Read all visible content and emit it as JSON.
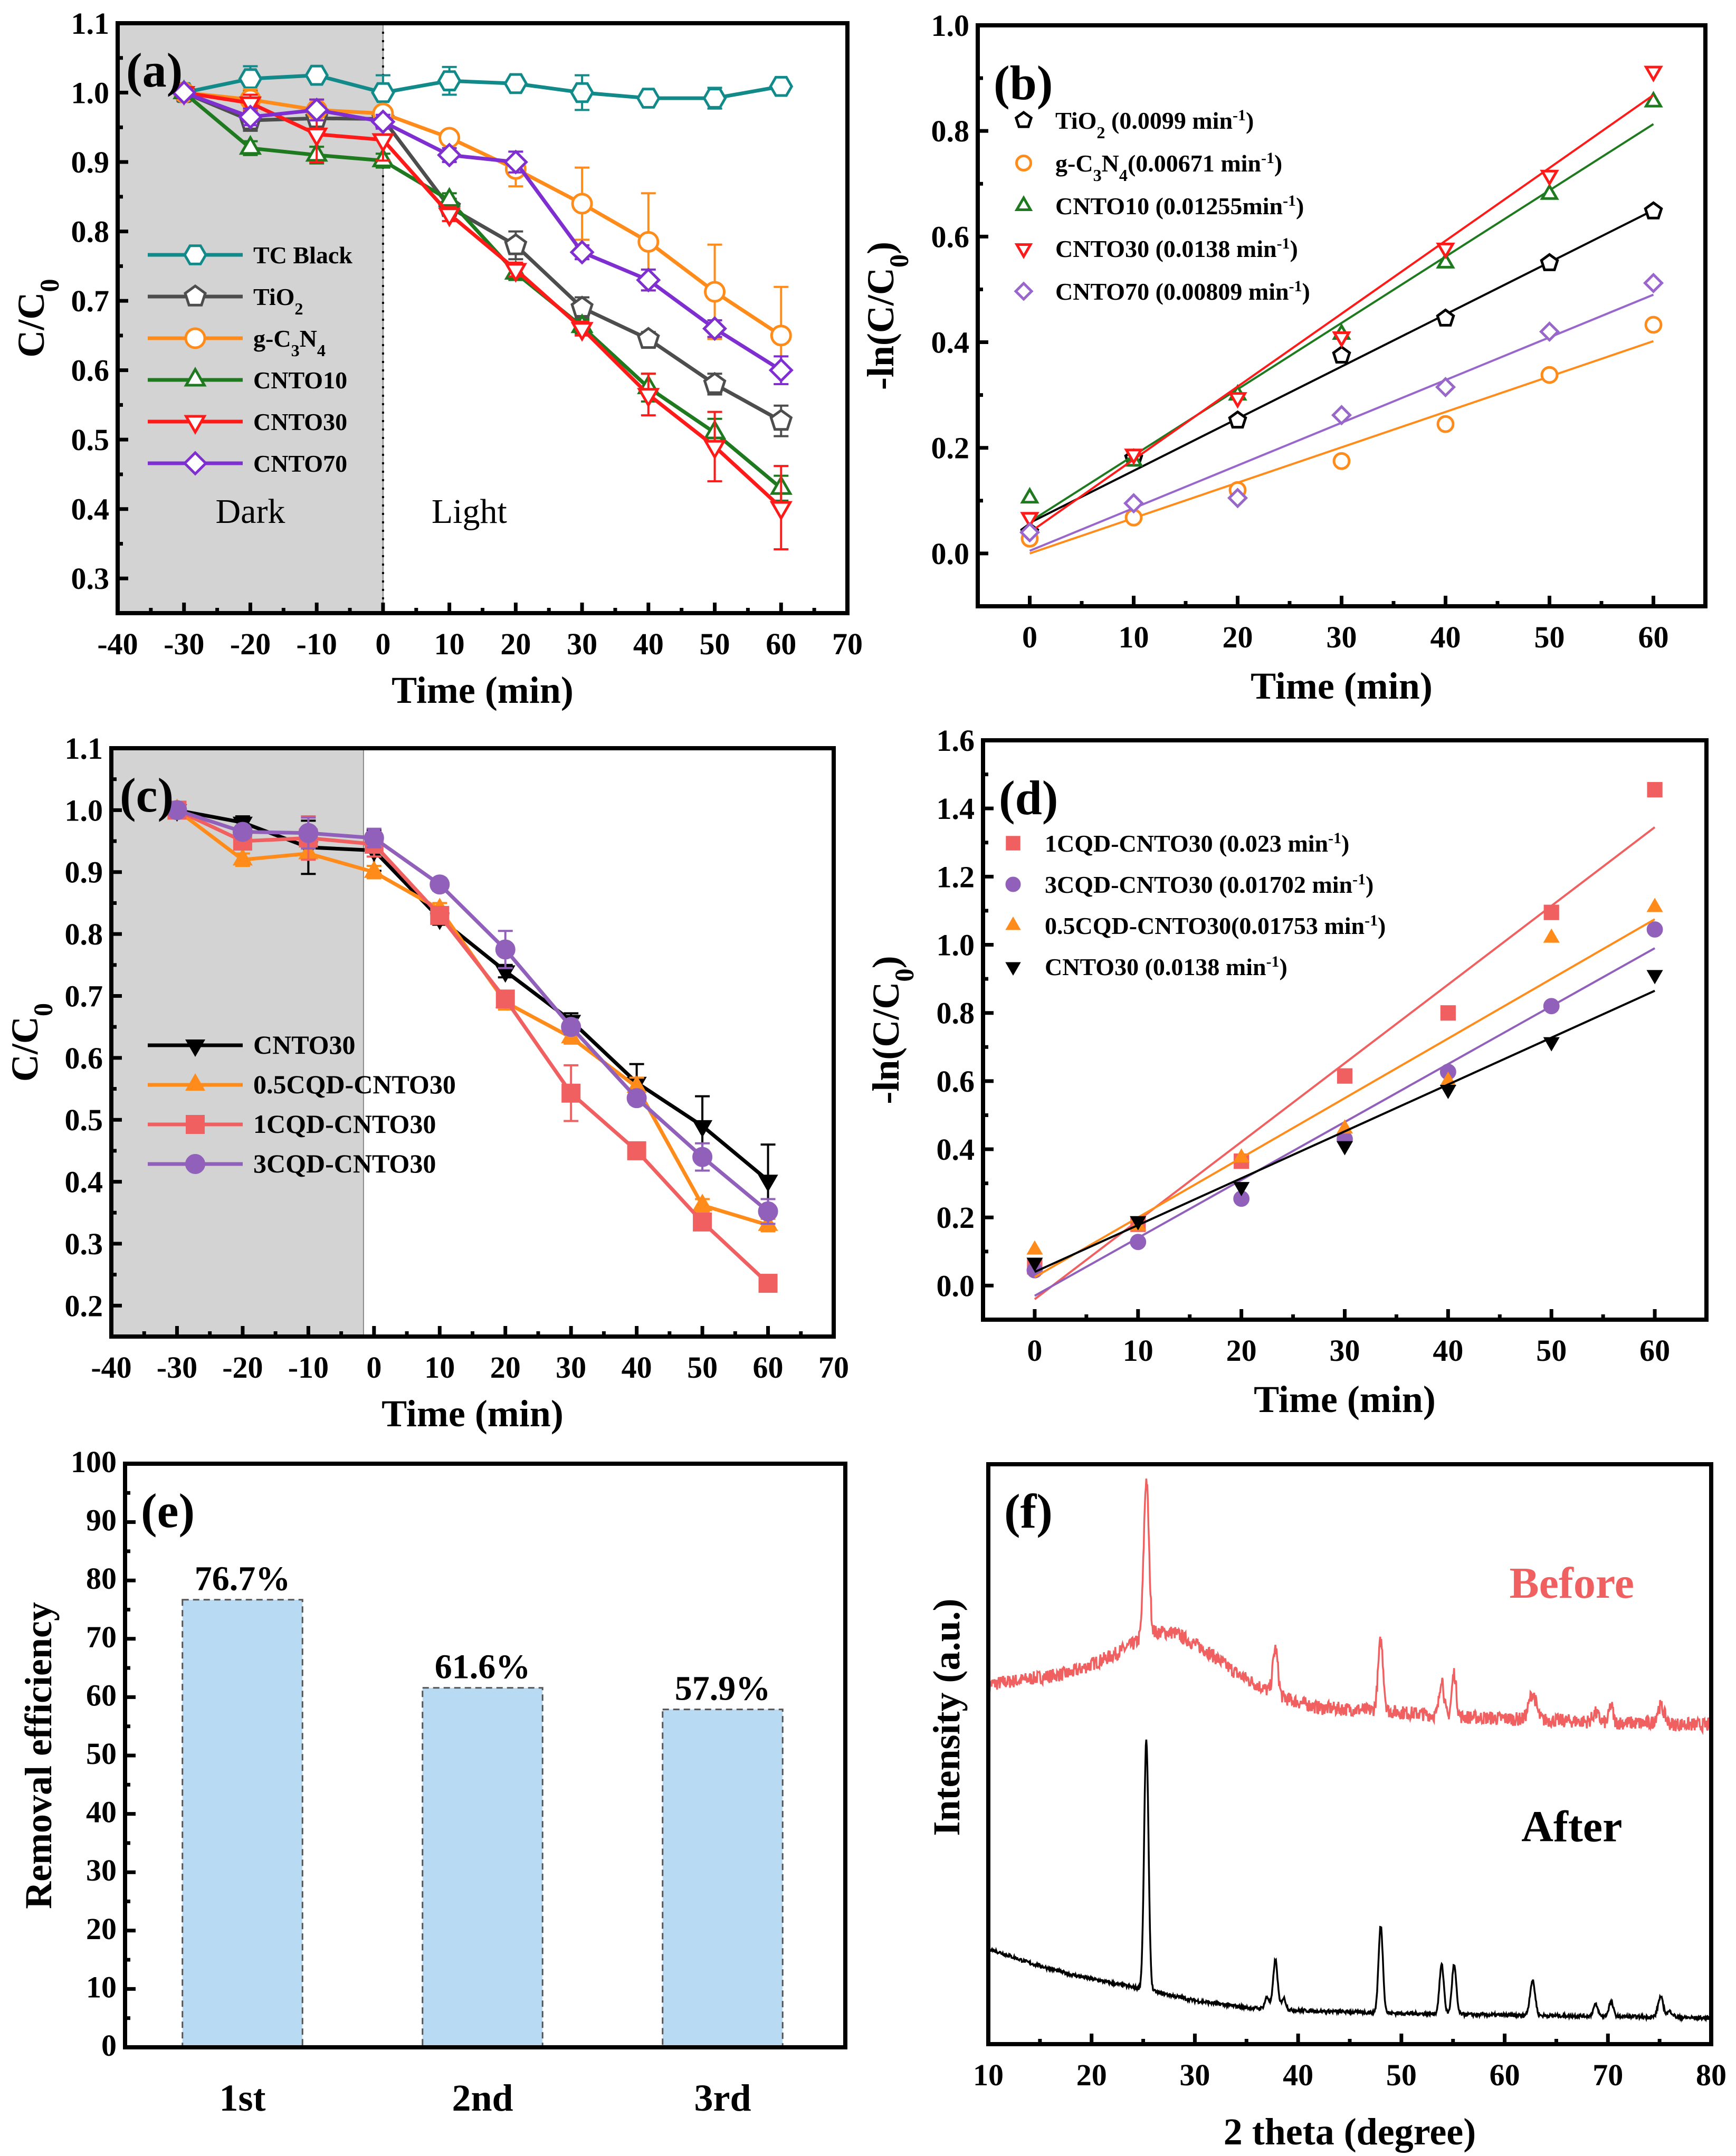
{
  "chart_data": [
    {
      "id": "a",
      "panel_label": "(a)",
      "type": "line",
      "xlabel": "Time (min)",
      "ylabel": "C/C0",
      "xlim": [
        -40,
        70
      ],
      "ylim": [
        0.25,
        1.1
      ],
      "xticks": [
        -40,
        -30,
        -20,
        -10,
        0,
        10,
        20,
        30,
        40,
        50,
        60,
        70
      ],
      "yticks": [
        0.3,
        0.4,
        0.5,
        0.6,
        0.7,
        0.8,
        0.9,
        1.0,
        1.1
      ],
      "shaded_region": {
        "x": [
          -40,
          0
        ],
        "color": "#d3d3d3"
      },
      "divider_x": 0,
      "region_labels": [
        {
          "text": "Dark",
          "x": -20,
          "y": 0.38
        },
        {
          "text": "Light",
          "x": 13,
          "y": 0.38
        }
      ],
      "legend_position": "center-left",
      "x": [
        -30,
        -20,
        -10,
        0,
        10,
        20,
        30,
        40,
        50,
        60
      ],
      "series": [
        {
          "name": "TC Black",
          "color": "#138a8a",
          "marker": "hexagon",
          "values": [
            1.0,
            1.02,
            1.025,
            1.0,
            1.017,
            1.013,
            1.0,
            0.992,
            0.992,
            1.009
          ],
          "errors": [
            0.0,
            0.018,
            0.008,
            0.025,
            0.02,
            0.008,
            0.025,
            0.005,
            0.015,
            0.01
          ]
        },
        {
          "name": "TiO2",
          "color": "#4d4d4d",
          "marker": "pentagon",
          "values": [
            1.0,
            0.96,
            0.963,
            0.962,
            0.835,
            0.78,
            0.69,
            0.645,
            0.58,
            0.527
          ],
          "errors": [
            0.0,
            0.015,
            0.01,
            0.01,
            0.012,
            0.02,
            0.015,
            0.01,
            0.015,
            0.022
          ]
        },
        {
          "name": "g-C3N4",
          "color": "#ff8c1a",
          "marker": "circle",
          "values": [
            1.0,
            0.99,
            0.975,
            0.97,
            0.935,
            0.89,
            0.84,
            0.785,
            0.713,
            0.65
          ],
          "errors": [
            0.0,
            0.015,
            0.015,
            0.01,
            0.01,
            0.025,
            0.052,
            0.07,
            0.068,
            0.07
          ]
        },
        {
          "name": "CNTO10",
          "color": "#1f7a1f",
          "marker": "triangle-up",
          "values": [
            1.0,
            0.92,
            0.91,
            0.902,
            0.845,
            0.74,
            0.663,
            0.575,
            0.51,
            0.43
          ],
          "errors": [
            0.0,
            0.01,
            0.012,
            0.01,
            0.01,
            0.01,
            0.01,
            0.02,
            0.02,
            0.018
          ]
        },
        {
          "name": "CNTO30",
          "color": "#ff1a1a",
          "marker": "triangle-down",
          "values": [
            1.0,
            0.985,
            0.94,
            0.932,
            0.825,
            0.745,
            0.66,
            0.565,
            0.49,
            0.402
          ],
          "errors": [
            0.0,
            0.012,
            0.04,
            0.03,
            0.01,
            0.01,
            0.01,
            0.03,
            0.05,
            0.06
          ]
        },
        {
          "name": "CNTO70",
          "color": "#7f2fd0",
          "marker": "diamond",
          "values": [
            1.0,
            0.965,
            0.975,
            0.958,
            0.91,
            0.9,
            0.77,
            0.73,
            0.66,
            0.6
          ],
          "errors": [
            0.0,
            0.012,
            0.015,
            0.01,
            0.01,
            0.015,
            0.01,
            0.015,
            0.012,
            0.02
          ]
        }
      ]
    },
    {
      "id": "b",
      "panel_label": "(b)",
      "type": "scatter",
      "xlabel": "Time (min)",
      "ylabel": "-ln(C/C0)",
      "xlim": [
        -5,
        65
      ],
      "ylim": [
        -0.1,
        1.0
      ],
      "xticks": [
        0,
        10,
        20,
        30,
        40,
        50,
        60
      ],
      "yticks": [
        0.0,
        0.2,
        0.4,
        0.6,
        0.8,
        1.0
      ],
      "legend_position": "top-left",
      "x": [
        0,
        10,
        20,
        30,
        40,
        50,
        60
      ],
      "series": [
        {
          "name": "TiO2",
          "legend": "TiO2 (0.0099 min-1)",
          "rate": "0.0099",
          "color": "#000000",
          "marker": "pentagon",
          "values": [
            0.04,
            0.18,
            0.252,
            0.375,
            0.445,
            0.55,
            0.648
          ],
          "fit": [
            0.058,
            0.65
          ]
        },
        {
          "name": "g-C3N4",
          "legend": "g-C3N4(0.00671 min-1)",
          "rate": "0.00671",
          "color": "#ff8c1a",
          "marker": "circle",
          "values": [
            0.028,
            0.068,
            0.12,
            0.175,
            0.245,
            0.338,
            0.433
          ],
          "fit": [
            0.0,
            0.402
          ]
        },
        {
          "name": "CNTO10",
          "legend": "CNTO10 (0.01255min-1)",
          "rate": "0.01255",
          "color": "#1f7a1f",
          "marker": "triangle-up",
          "values": [
            0.105,
            0.175,
            0.3,
            0.415,
            0.55,
            0.68,
            0.855
          ],
          "fit": [
            0.06,
            0.813
          ]
        },
        {
          "name": "CNTO30",
          "legend": "CNTO30 (0.0138 min-1)",
          "rate": "0.0138",
          "color": "#ff1a1a",
          "marker": "triangle-down",
          "values": [
            0.068,
            0.188,
            0.295,
            0.41,
            0.578,
            0.716,
            0.913
          ],
          "fit": [
            0.04,
            0.868
          ]
        },
        {
          "name": "CNTO70",
          "legend": "CNTO70 (0.00809 min-1)",
          "rate": "0.00809",
          "color": "#9966cc",
          "marker": "diamond",
          "values": [
            0.04,
            0.095,
            0.105,
            0.262,
            0.315,
            0.42,
            0.512
          ],
          "fit": [
            0.005,
            0.49
          ]
        }
      ]
    },
    {
      "id": "c",
      "panel_label": "(c)",
      "type": "line",
      "xlabel": "Time (min)",
      "ylabel": "C/C0",
      "xlim": [
        -40,
        70
      ],
      "ylim": [
        0.15,
        1.1
      ],
      "xticks": [
        -40,
        -30,
        -20,
        -10,
        0,
        10,
        20,
        30,
        40,
        50,
        60,
        70
      ],
      "yticks": [
        0.2,
        0.3,
        0.4,
        0.5,
        0.6,
        0.7,
        0.8,
        0.9,
        1.0,
        1.1
      ],
      "shaded_region": {
        "x": [
          -40,
          -1.6
        ],
        "color": "#d3d3d3"
      },
      "legend_position": "center-left",
      "x": [
        -30,
        -20,
        -10,
        0,
        10,
        20,
        30,
        40,
        50,
        60
      ],
      "series": [
        {
          "name": "CNTO30",
          "color": "#000000",
          "marker": "triangle-down-filled",
          "values": [
            1.0,
            0.98,
            0.94,
            0.935,
            0.825,
            0.74,
            0.66,
            0.56,
            0.49,
            0.402
          ],
          "errors": [
            0.0,
            0.01,
            0.043,
            0.033,
            0.01,
            0.01,
            0.012,
            0.03,
            0.048,
            0.058
          ]
        },
        {
          "name": "0.5CQD-CNTO30",
          "color": "#ff8c1a",
          "marker": "triangle-up-filled",
          "values": [
            1.0,
            0.92,
            0.93,
            0.9,
            0.84,
            0.69,
            0.633,
            0.553,
            0.362,
            0.33
          ],
          "errors": [
            0.0,
            0.01,
            0.01,
            0.01,
            0.01,
            0.012,
            0.01,
            0.015,
            0.01,
            0.01
          ]
        },
        {
          "name": "1CQD-CNTO30",
          "color": "#f06060",
          "marker": "square-filled",
          "values": [
            1.0,
            0.95,
            0.955,
            0.945,
            0.83,
            0.695,
            0.543,
            0.45,
            0.335,
            0.236
          ],
          "errors": [
            0.0,
            0.01,
            0.035,
            0.02,
            0.01,
            0.01,
            0.045,
            0.008,
            0.01,
            0.008
          ]
        },
        {
          "name": "3CQD-CNTO30",
          "color": "#9060bb",
          "marker": "circle-filled",
          "values": [
            1.0,
            0.965,
            0.963,
            0.955,
            0.88,
            0.775,
            0.65,
            0.535,
            0.44,
            0.352
          ],
          "errors": [
            0.0,
            0.01,
            0.025,
            0.015,
            0.01,
            0.03,
            0.012,
            0.01,
            0.022,
            0.02
          ]
        }
      ]
    },
    {
      "id": "d",
      "panel_label": "(d)",
      "type": "scatter",
      "xlabel": "Time (min)",
      "ylabel": "-ln(C/C0)",
      "xlim": [
        -5,
        65
      ],
      "ylim": [
        -0.1,
        1.6
      ],
      "xticks": [
        0,
        10,
        20,
        30,
        40,
        50,
        60
      ],
      "yticks": [
        0.0,
        0.2,
        0.4,
        0.6,
        0.8,
        1.0,
        1.2,
        1.4,
        1.6
      ],
      "legend_position": "top-left",
      "x": [
        0,
        10,
        20,
        30,
        40,
        50,
        60
      ],
      "series": [
        {
          "name": "1CQD-CNTO30",
          "legend": "1CQD-CNTO30 (0.023 min-1)",
          "rate": "0.023",
          "color": "#f06060",
          "marker": "square-filled",
          "values": [
            0.055,
            0.18,
            0.365,
            0.615,
            0.8,
            1.095,
            1.455
          ],
          "fit": [
            -0.04,
            1.345
          ]
        },
        {
          "name": "3CQD-CNTO30",
          "legend": "3CQD-CNTO30 (0.01702 min-1)",
          "rate": "0.01702",
          "color": "#9060bb",
          "marker": "circle-filled",
          "values": [
            0.045,
            0.128,
            0.255,
            0.43,
            0.627,
            0.82,
            1.045
          ],
          "fit": [
            -0.03,
            0.99
          ]
        },
        {
          "name": "0.5CQD-CNTO30",
          "legend": "0.5CQD-CNTO30(0.01753 min-1)",
          "rate": "0.01753",
          "color": "#ff8c1a",
          "marker": "triangle-up-filled",
          "values": [
            0.105,
            0.175,
            0.375,
            0.46,
            0.6,
            1.02,
            1.11
          ],
          "fit": [
            0.025,
            1.075
          ]
        },
        {
          "name": "CNTO30",
          "legend": "CNTO30 (0.0138 min-1)",
          "rate": "0.0138",
          "color": "#000000",
          "marker": "triangle-down-filled",
          "values": [
            0.068,
            0.19,
            0.29,
            0.41,
            0.575,
            0.715,
            0.912
          ],
          "fit": [
            0.04,
            0.865
          ]
        }
      ]
    },
    {
      "id": "e",
      "panel_label": "(e)",
      "type": "bar",
      "xlabel": "",
      "ylabel": "Removal efficiency",
      "ylim": [
        0,
        100
      ],
      "yticks": [
        0,
        10,
        20,
        30,
        40,
        50,
        60,
        70,
        80,
        90,
        100
      ],
      "categories": [
        "1st",
        "2nd",
        "3rd"
      ],
      "values": [
        76.7,
        61.6,
        57.9
      ],
      "data_labels": [
        "76.7%",
        "61.6%",
        "57.9%"
      ],
      "bar_color": "#b8daf2",
      "bar_edge_color": "#555555"
    },
    {
      "id": "f",
      "panel_label": "(f)",
      "type": "line",
      "xlabel": "2 theta (degree)",
      "ylabel": "Intensity (a.u.)",
      "xlim": [
        10,
        80
      ],
      "xticks": [
        10,
        20,
        30,
        40,
        50,
        60,
        70,
        80
      ],
      "yticks": [],
      "peaks_2theta": [
        25.3,
        37.8,
        48.0,
        53.9,
        55.1,
        62.7,
        68.8,
        70.3,
        75.1
      ],
      "series": [
        {
          "name": "Before",
          "label": "Before",
          "color": "#f06060",
          "baseline": [
            [
              10,
              0.62
            ],
            [
              14,
              0.63
            ],
            [
              18,
              0.64
            ],
            [
              22,
              0.67
            ],
            [
              24,
              0.69
            ],
            [
              26,
              0.71
            ],
            [
              28,
              0.71
            ],
            [
              31,
              0.68
            ],
            [
              34,
              0.64
            ],
            [
              38,
              0.6
            ],
            [
              42,
              0.58
            ],
            [
              48,
              0.575
            ],
            [
              55,
              0.565
            ],
            [
              62,
              0.56
            ],
            [
              70,
              0.555
            ],
            [
              80,
              0.55
            ]
          ],
          "peaks": [
            [
              25.3,
              0.27,
              0.35
            ],
            [
              37.8,
              0.08,
              0.35
            ],
            [
              48.0,
              0.12,
              0.35
            ],
            [
              53.9,
              0.065,
              0.3
            ],
            [
              55.1,
              0.075,
              0.3
            ],
            [
              62.7,
              0.045,
              0.5
            ],
            [
              68.8,
              0.015,
              0.4
            ],
            [
              70.3,
              0.03,
              0.25
            ],
            [
              75.1,
              0.03,
              0.5
            ]
          ],
          "noise": 0.012
        },
        {
          "name": "After",
          "label": "After",
          "color": "#000000",
          "baseline": [
            [
              10,
              0.165
            ],
            [
              14,
              0.14
            ],
            [
              18,
              0.12
            ],
            [
              22,
              0.105
            ],
            [
              25,
              0.095
            ],
            [
              30,
              0.075
            ],
            [
              35,
              0.063
            ],
            [
              40,
              0.058
            ],
            [
              50,
              0.053
            ],
            [
              60,
              0.05
            ],
            [
              70,
              0.048
            ],
            [
              80,
              0.045
            ]
          ],
          "peaks": [
            [
              25.3,
              0.43,
              0.3
            ],
            [
              37.0,
              0.02,
              0.3
            ],
            [
              37.8,
              0.085,
              0.3
            ],
            [
              38.6,
              0.02,
              0.3
            ],
            [
              48.0,
              0.15,
              0.3
            ],
            [
              53.9,
              0.085,
              0.3
            ],
            [
              55.1,
              0.085,
              0.3
            ],
            [
              62.7,
              0.06,
              0.35
            ],
            [
              68.8,
              0.02,
              0.3
            ],
            [
              70.3,
              0.025,
              0.3
            ],
            [
              75.1,
              0.035,
              0.35
            ],
            [
              76.0,
              0.01,
              0.4
            ]
          ],
          "noise": 0.003
        }
      ]
    }
  ]
}
